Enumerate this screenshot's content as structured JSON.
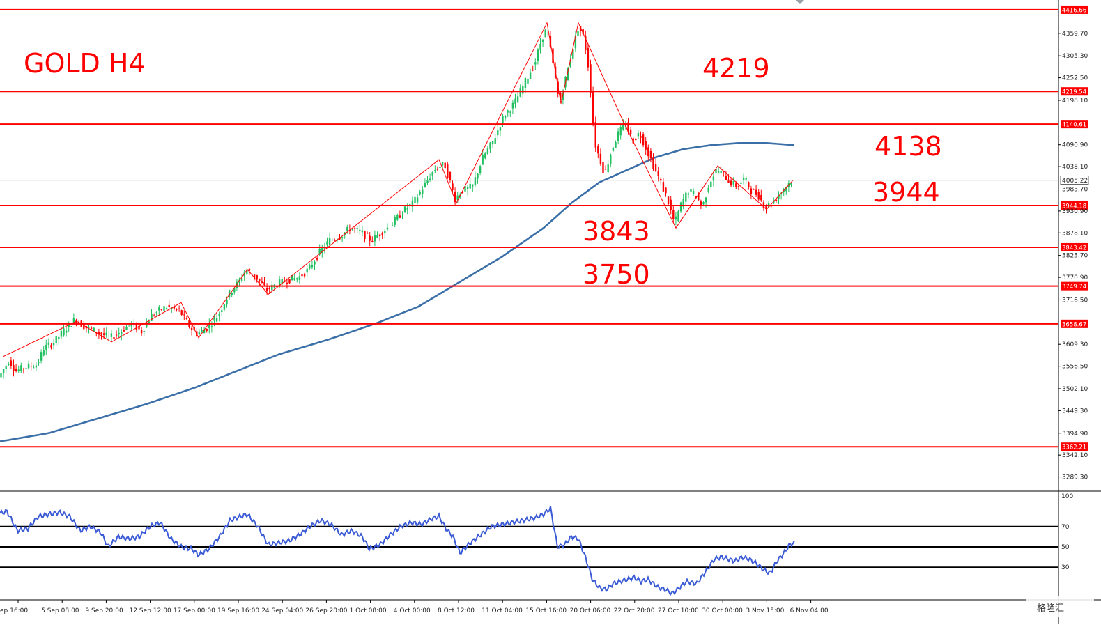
{
  "chart_data": {
    "type": "candlestick",
    "title": "GOLD H4",
    "instrument": "GOLD",
    "timeframe": "H4",
    "current_price": "4005.22",
    "colors": {
      "level_line": "#ff0000",
      "moving_average": "#3a6fa8",
      "rsi": "#3b5bd6",
      "bull_candle": "#20c060",
      "bear_candle": "#ff0000",
      "zigzag": "#ff0000",
      "background": "#ffffff"
    },
    "price_axis": {
      "min": 3260,
      "max": 4430,
      "ticks": [
        "4359.70",
        "4305.30",
        "4252.50",
        "4198.10",
        "4090.90",
        "4038.10",
        "3983.70",
        "3930.90",
        "3878.10",
        "3823.70",
        "3770.90",
        "3716.50",
        "3609.30",
        "3556.50",
        "3502.10",
        "3449.30",
        "3394.90",
        "3342.10",
        "3289.30"
      ]
    },
    "level_tags": [
      {
        "value": "4416.66"
      },
      {
        "value": "4219.54"
      },
      {
        "value": "4140.61"
      },
      {
        "value": "3944.18"
      },
      {
        "value": "3843.42"
      },
      {
        "value": "3749.74"
      },
      {
        "value": "3658.67"
      },
      {
        "value": "3362.21"
      }
    ],
    "annotations": [
      {
        "text": "4219"
      },
      {
        "text": "4138"
      },
      {
        "text": "3944"
      },
      {
        "text": "3843"
      },
      {
        "text": "3750"
      }
    ],
    "time_axis": [
      "ep 16:00",
      "5 Sep 08:00",
      "9 Sep 20:00",
      "12 Sep 12:00",
      "17 Sep 00:00",
      "19 Sep 16:00",
      "24 Sep 04:00",
      "26 Sep 20:00",
      "1 Oct 08:00",
      "4 Oct 00:00",
      "8 Oct 12:00",
      "11 Oct 04:00",
      "15 Oct 16:00",
      "20 Oct 06:00",
      "22 Oct 20:00",
      "27 Oct 10:00",
      "30 Oct 00:00",
      "3 Nov 15:00",
      "6 Nov 04:00"
    ],
    "price_anchors": [
      [
        0,
        3530
      ],
      [
        15,
        3570
      ],
      [
        25,
        3545
      ],
      [
        40,
        3555
      ],
      [
        55,
        3560
      ],
      [
        65,
        3600
      ],
      [
        80,
        3615
      ],
      [
        95,
        3645
      ],
      [
        110,
        3670
      ],
      [
        125,
        3650
      ],
      [
        140,
        3640
      ],
      [
        160,
        3625
      ],
      [
        175,
        3640
      ],
      [
        190,
        3660
      ],
      [
        205,
        3640
      ],
      [
        220,
        3680
      ],
      [
        240,
        3700
      ],
      [
        260,
        3690
      ],
      [
        275,
        3650
      ],
      [
        285,
        3635
      ],
      [
        300,
        3650
      ],
      [
        315,
        3680
      ],
      [
        330,
        3730
      ],
      [
        345,
        3760
      ],
      [
        355,
        3790
      ],
      [
        370,
        3770
      ],
      [
        385,
        3740
      ],
      [
        400,
        3755
      ],
      [
        415,
        3765
      ],
      [
        430,
        3770
      ],
      [
        445,
        3790
      ],
      [
        460,
        3830
      ],
      [
        475,
        3860
      ],
      [
        490,
        3870
      ],
      [
        505,
        3890
      ],
      [
        520,
        3880
      ],
      [
        535,
        3860
      ],
      [
        550,
        3880
      ],
      [
        565,
        3900
      ],
      [
        580,
        3930
      ],
      [
        595,
        3950
      ],
      [
        610,
        3990
      ],
      [
        625,
        4030
      ],
      [
        640,
        4045
      ],
      [
        655,
        3960
      ],
      [
        665,
        3980
      ],
      [
        680,
        3990
      ],
      [
        695,
        4060
      ],
      [
        710,
        4100
      ],
      [
        725,
        4160
      ],
      [
        740,
        4190
      ],
      [
        755,
        4240
      ],
      [
        770,
        4290
      ],
      [
        780,
        4350
      ],
      [
        787,
        4370
      ],
      [
        795,
        4290
      ],
      [
        805,
        4190
      ],
      [
        815,
        4260
      ],
      [
        825,
        4330
      ],
      [
        832,
        4375
      ],
      [
        840,
        4350
      ],
      [
        848,
        4260
      ],
      [
        855,
        4100
      ],
      [
        862,
        4060
      ],
      [
        870,
        4020
      ],
      [
        880,
        4080
      ],
      [
        890,
        4120
      ],
      [
        900,
        4140
      ],
      [
        910,
        4100
      ],
      [
        920,
        4120
      ],
      [
        930,
        4080
      ],
      [
        940,
        4040
      ],
      [
        950,
        4000
      ],
      [
        960,
        3960
      ],
      [
        970,
        3900
      ],
      [
        980,
        3950
      ],
      [
        990,
        3980
      ],
      [
        1000,
        3970
      ],
      [
        1010,
        3940
      ],
      [
        1020,
        4000
      ],
      [
        1030,
        4030
      ],
      [
        1040,
        4020
      ],
      [
        1050,
        4000
      ],
      [
        1060,
        3990
      ],
      [
        1070,
        4010
      ],
      [
        1080,
        3980
      ],
      [
        1090,
        3970
      ],
      [
        1100,
        3940
      ],
      [
        1110,
        3950
      ],
      [
        1120,
        3970
      ],
      [
        1130,
        3990
      ],
      [
        1138,
        4005
      ]
    ],
    "ma_anchors": [
      [
        0,
        3375
      ],
      [
        70,
        3395
      ],
      [
        140,
        3430
      ],
      [
        210,
        3465
      ],
      [
        280,
        3505
      ],
      [
        340,
        3545
      ],
      [
        400,
        3585
      ],
      [
        470,
        3620
      ],
      [
        540,
        3660
      ],
      [
        600,
        3700
      ],
      [
        660,
        3760
      ],
      [
        720,
        3820
      ],
      [
        780,
        3890
      ],
      [
        820,
        3950
      ],
      [
        860,
        4000
      ],
      [
        900,
        4030
      ],
      [
        940,
        4060
      ],
      [
        980,
        4080
      ],
      [
        1020,
        4090
      ],
      [
        1060,
        4095
      ],
      [
        1100,
        4095
      ],
      [
        1140,
        4090
      ]
    ],
    "zigzag": [
      [
        5,
        3580
      ],
      [
        110,
        3665
      ],
      [
        160,
        3615
      ],
      [
        260,
        3710
      ],
      [
        285,
        3625
      ],
      [
        355,
        3790
      ],
      [
        385,
        3730
      ],
      [
        630,
        4055
      ],
      [
        655,
        3950
      ],
      [
        785,
        4385
      ],
      [
        805,
        4190
      ],
      [
        830,
        4385
      ],
      [
        895,
        4145
      ],
      [
        970,
        3890
      ],
      [
        1030,
        4040
      ],
      [
        1100,
        3935
      ],
      [
        1138,
        4005
      ]
    ],
    "rsi": {
      "min": 0,
      "max": 100,
      "levels": [
        70,
        50,
        30
      ],
      "scale_labels": [
        "100",
        "70",
        "50",
        "30"
      ],
      "anchors": [
        [
          0,
          83
        ],
        [
          10,
          85
        ],
        [
          25,
          66
        ],
        [
          40,
          68
        ],
        [
          55,
          80
        ],
        [
          70,
          82
        ],
        [
          85,
          84
        ],
        [
          100,
          80
        ],
        [
          115,
          66
        ],
        [
          130,
          70
        ],
        [
          145,
          64
        ],
        [
          155,
          50
        ],
        [
          170,
          60
        ],
        [
          185,
          58
        ],
        [
          200,
          60
        ],
        [
          215,
          70
        ],
        [
          230,
          74
        ],
        [
          245,
          58
        ],
        [
          260,
          50
        ],
        [
          275,
          48
        ],
        [
          285,
          42
        ],
        [
          300,
          48
        ],
        [
          315,
          60
        ],
        [
          330,
          76
        ],
        [
          345,
          80
        ],
        [
          355,
          82
        ],
        [
          370,
          70
        ],
        [
          385,
          52
        ],
        [
          400,
          54
        ],
        [
          415,
          56
        ],
        [
          430,
          62
        ],
        [
          445,
          70
        ],
        [
          460,
          76
        ],
        [
          475,
          72
        ],
        [
          490,
          62
        ],
        [
          505,
          66
        ],
        [
          520,
          60
        ],
        [
          530,
          48
        ],
        [
          545,
          52
        ],
        [
          560,
          62
        ],
        [
          575,
          70
        ],
        [
          590,
          74
        ],
        [
          605,
          72
        ],
        [
          620,
          78
        ],
        [
          630,
          80
        ],
        [
          640,
          68
        ],
        [
          650,
          60
        ],
        [
          660,
          44
        ],
        [
          675,
          54
        ],
        [
          690,
          62
        ],
        [
          705,
          70
        ],
        [
          720,
          72
        ],
        [
          735,
          74
        ],
        [
          750,
          76
        ],
        [
          765,
          78
        ],
        [
          780,
          82
        ],
        [
          790,
          88
        ],
        [
          800,
          50
        ],
        [
          810,
          52
        ],
        [
          820,
          60
        ],
        [
          830,
          58
        ],
        [
          840,
          40
        ],
        [
          850,
          18
        ],
        [
          860,
          10
        ],
        [
          870,
          8
        ],
        [
          880,
          14
        ],
        [
          890,
          16
        ],
        [
          900,
          18
        ],
        [
          910,
          20
        ],
        [
          920,
          16
        ],
        [
          930,
          18
        ],
        [
          945,
          10
        ],
        [
          955,
          8
        ],
        [
          965,
          4
        ],
        [
          975,
          10
        ],
        [
          985,
          16
        ],
        [
          1000,
          14
        ],
        [
          1015,
          28
        ],
        [
          1025,
          38
        ],
        [
          1035,
          40
        ],
        [
          1045,
          38
        ],
        [
          1055,
          36
        ],
        [
          1065,
          40
        ],
        [
          1075,
          38
        ],
        [
          1085,
          34
        ],
        [
          1095,
          28
        ],
        [
          1105,
          24
        ],
        [
          1115,
          36
        ],
        [
          1125,
          44
        ],
        [
          1133,
          52
        ],
        [
          1140,
          54
        ]
      ]
    }
  },
  "branding": {
    "watermark": "格隆汇"
  }
}
